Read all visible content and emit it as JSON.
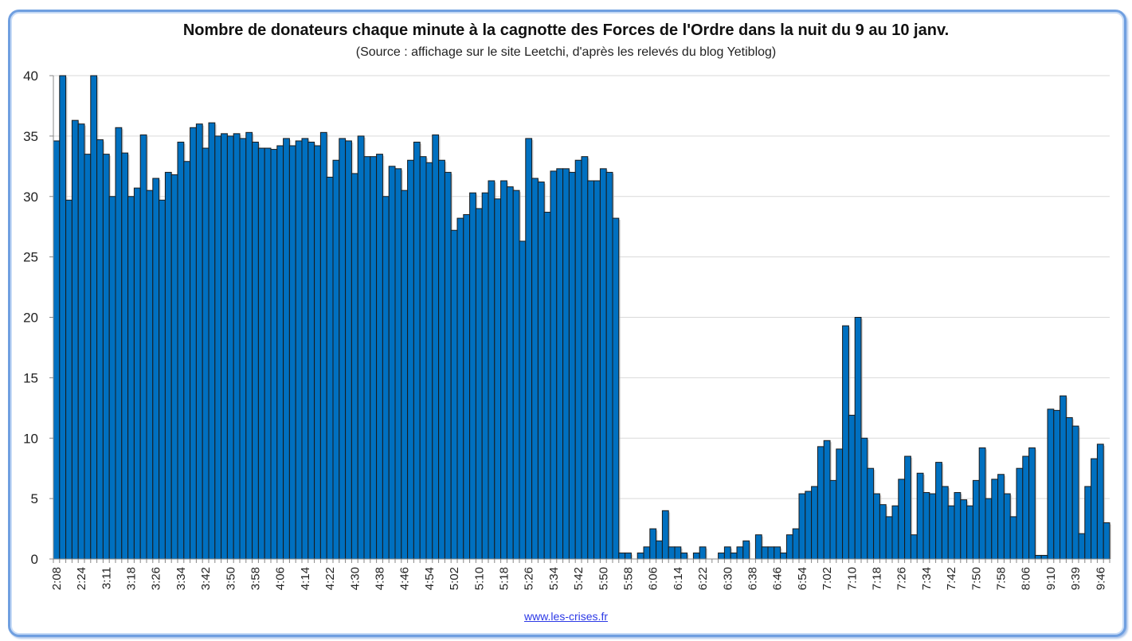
{
  "chart_data": {
    "type": "bar",
    "title": "Nombre de donateurs chaque minute à la cagnotte des Forces de l'Ordre dans la nuit du 9 au 10 janv.",
    "subtitle": "(Source : affichage sur le site Leetchi, d'après les relevés du blog Yetiblog)",
    "footer": "www.les-crises.fr",
    "xlabel": "",
    "ylabel": "",
    "ylim": [
      0,
      40
    ],
    "yticks": [
      "0",
      "5",
      "10",
      "15",
      "20",
      "25",
      "30",
      "35",
      "40"
    ],
    "grid": true,
    "bar_color": "#0070c0",
    "tick_labels": [
      "2:08",
      "2:24",
      "3:11",
      "3:18",
      "3:26",
      "3:34",
      "3:42",
      "3:50",
      "3:58",
      "4:06",
      "4:14",
      "4:22",
      "4:30",
      "4:38",
      "4:46",
      "4:54",
      "5:02",
      "5:10",
      "5:18",
      "5:26",
      "5:34",
      "5:42",
      "5:50",
      "5:58",
      "6:06",
      "6:14",
      "6:22",
      "6:30",
      "6:38",
      "6:46",
      "6:54",
      "7:02",
      "7:10",
      "7:18",
      "7:26",
      "7:34",
      "7:42",
      "7:50",
      "7:58",
      "8:06",
      "9:10",
      "9:39",
      "9:46"
    ],
    "values": [
      34.6,
      40,
      29.7,
      36.3,
      36,
      33.5,
      40,
      34.7,
      33.5,
      30,
      35.7,
      33.6,
      30,
      30.7,
      35.1,
      30.5,
      31.5,
      29.7,
      32,
      31.8,
      34.5,
      32.9,
      35.7,
      36,
      34,
      36.1,
      35,
      35.2,
      35,
      35.2,
      34.8,
      35.3,
      34.5,
      34,
      34,
      33.9,
      34.2,
      34.8,
      34.2,
      34.6,
      34.8,
      34.5,
      34.2,
      35.3,
      31.6,
      33,
      34.8,
      34.6,
      31.9,
      35,
      33.3,
      33.3,
      33.5,
      30,
      32.5,
      32.3,
      30.5,
      33,
      34.5,
      33.3,
      32.8,
      35.1,
      33,
      32,
      27.2,
      28.2,
      28.5,
      30.3,
      29,
      30.3,
      31.3,
      29.8,
      31.3,
      30.8,
      30.5,
      26.3,
      34.8,
      31.5,
      31.2,
      28.7,
      32.1,
      32.3,
      32.3,
      32,
      33,
      33.3,
      31.3,
      31.3,
      32.3,
      32,
      28.2,
      0.5,
      0.5,
      0,
      0.5,
      1,
      2.5,
      1.5,
      4,
      1,
      1,
      0.5,
      0,
      0.5,
      1,
      0,
      0,
      0.5,
      1,
      0.5,
      1,
      1.5,
      0,
      2,
      1,
      1,
      1,
      0.5,
      2,
      2.5,
      5.4,
      5.6,
      6,
      9.3,
      9.8,
      6.5,
      9.1,
      19.3,
      11.9,
      20,
      10,
      7.5,
      5.4,
      4.5,
      3.5,
      4.4,
      6.6,
      8.5,
      2,
      7.1,
      5.5,
      5.4,
      8,
      6,
      4.4,
      5.5,
      4.9,
      4.4,
      6.5,
      9.2,
      5,
      6.6,
      7,
      5.4,
      3.5,
      7.5,
      8.5,
      9.2,
      0.3,
      0.3,
      12.4,
      12.3,
      13.5,
      11.7,
      11,
      2.1,
      6,
      8.3,
      9.5,
      3
    ]
  }
}
